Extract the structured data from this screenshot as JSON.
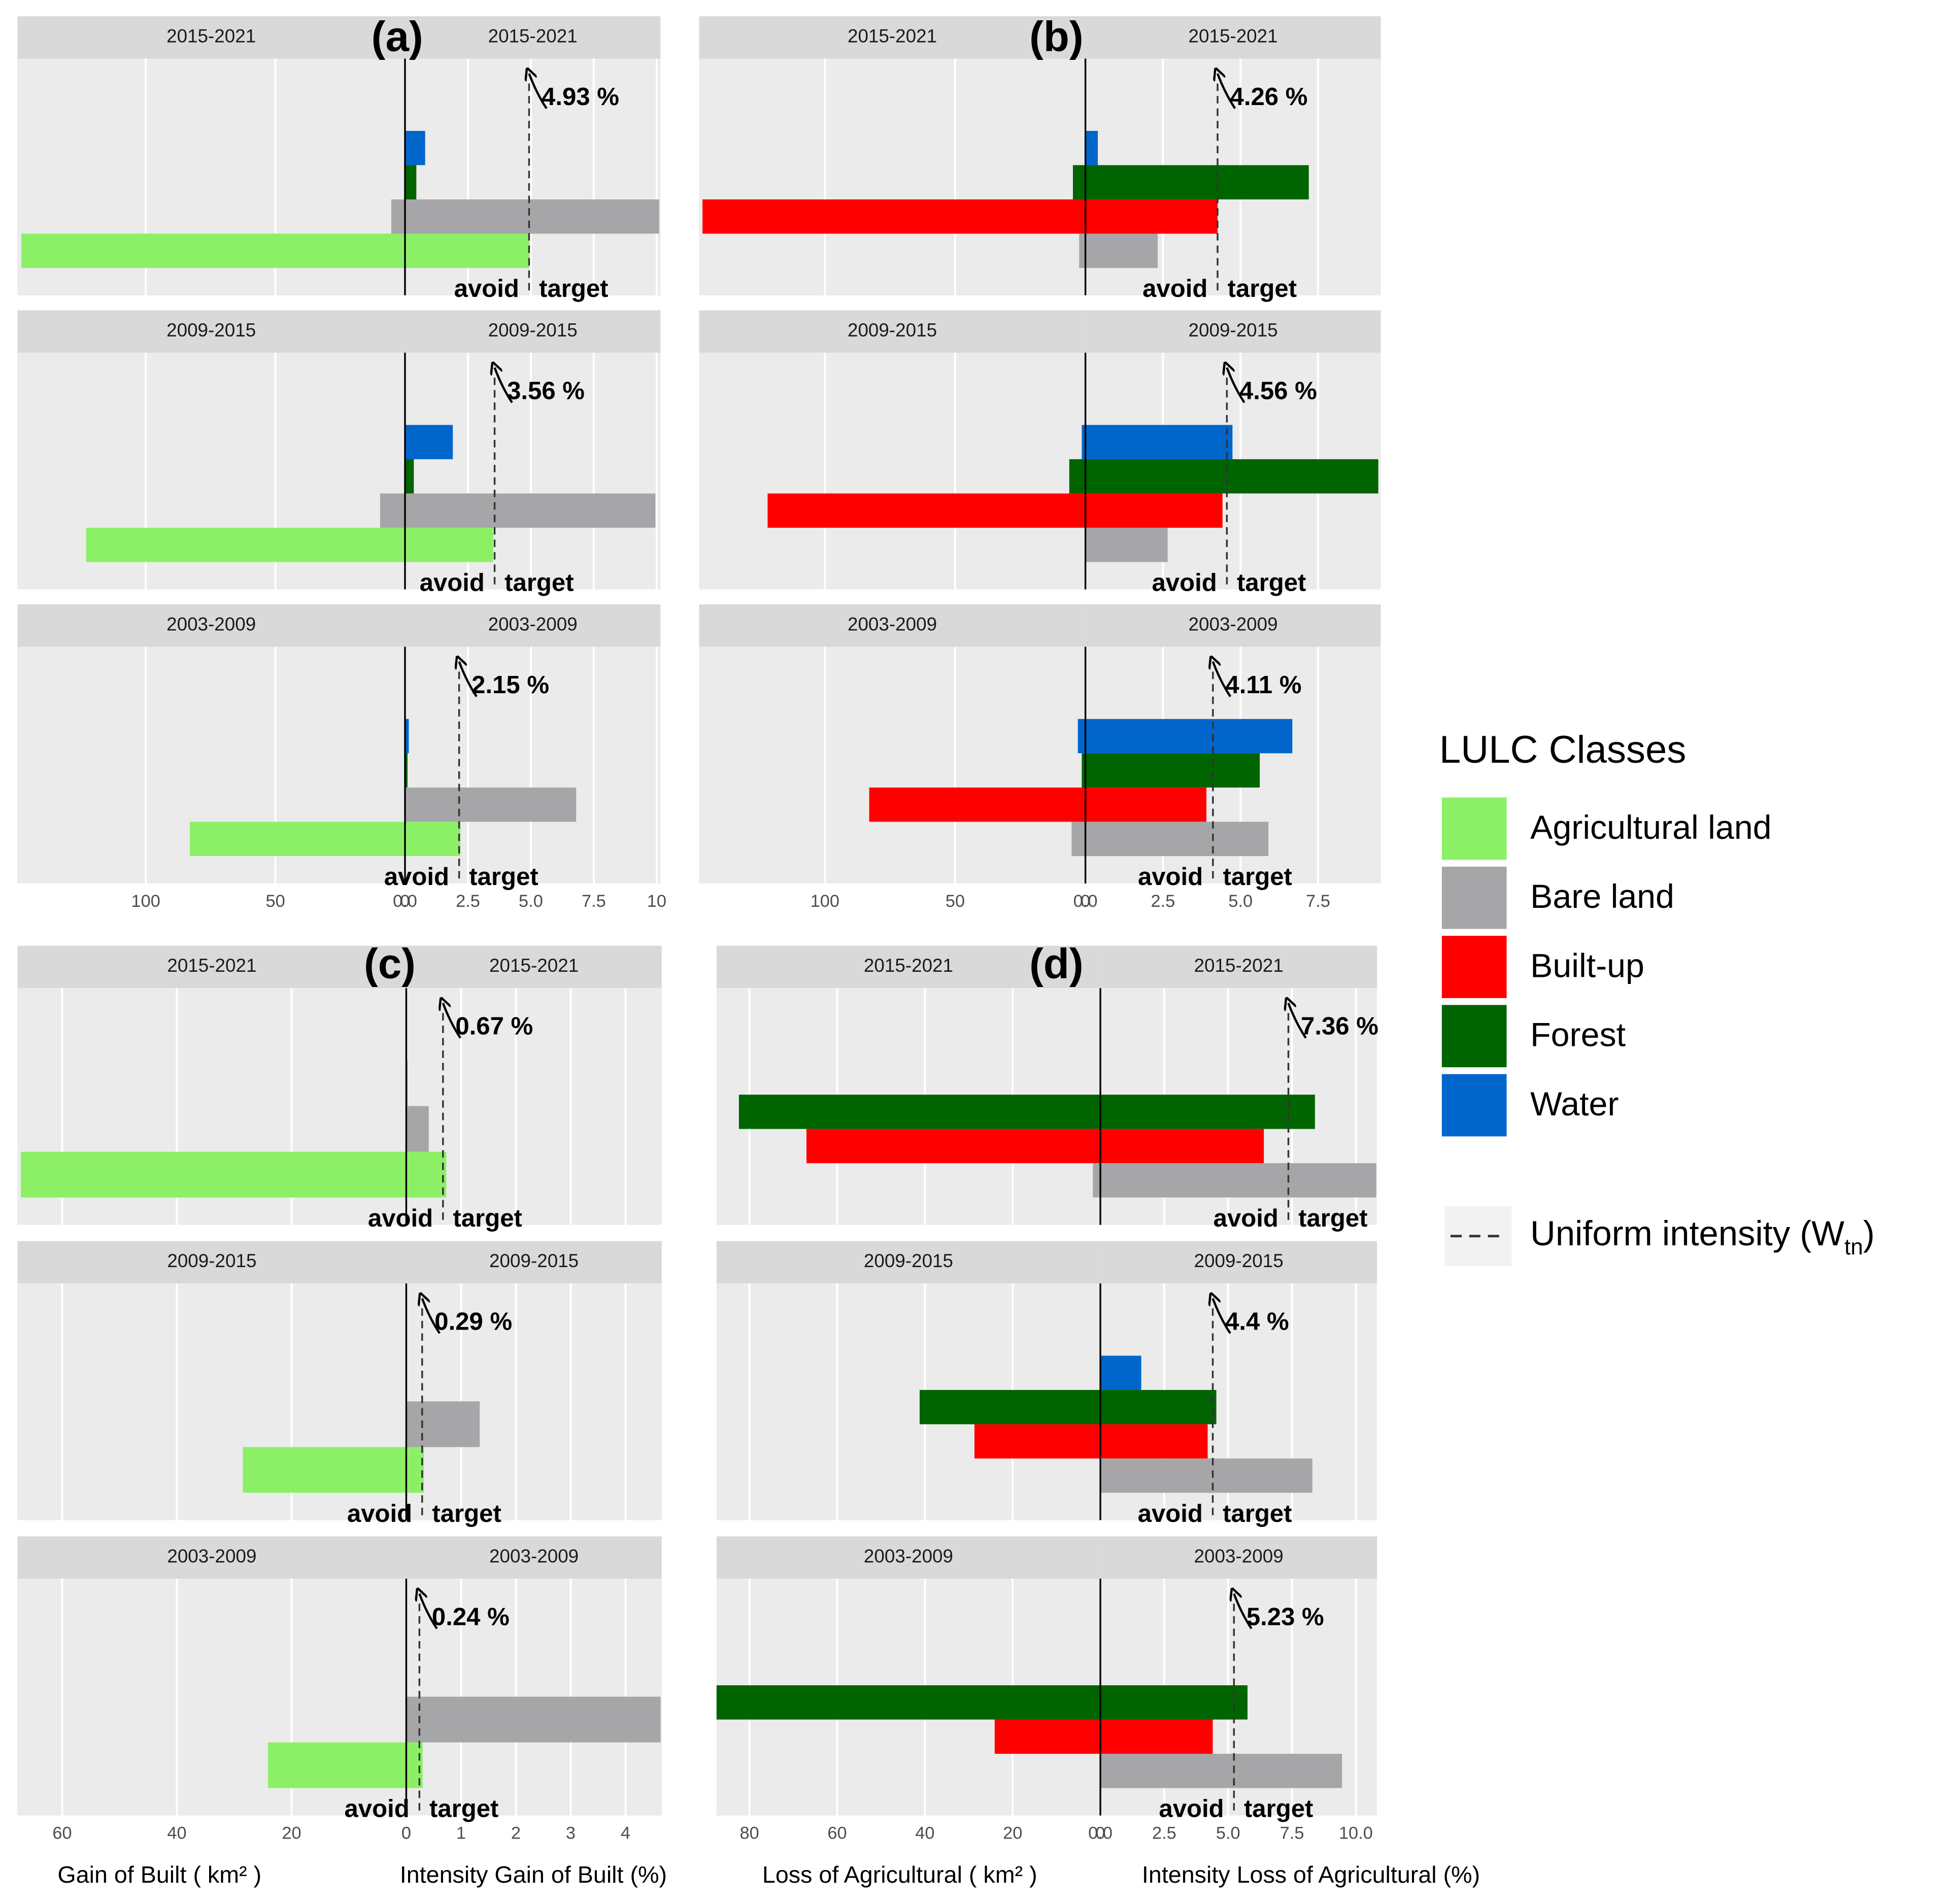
{
  "legend": {
    "title": "LULC Classes",
    "items": [
      {
        "name": "Agricultural land",
        "color": "#8cf066"
      },
      {
        "name": "Bare land",
        "color": "#a6a6a8"
      },
      {
        "name": "Built-up",
        "color": "#ff0000"
      },
      {
        "name": "Forest",
        "color": "#006400"
      },
      {
        "name": "Water",
        "color": "#0066cc"
      }
    ],
    "uniform": {
      "text": "Uniform intensity (W",
      "sub": "tn",
      "close": ")"
    }
  },
  "chart_data": [
    {
      "type": "bar",
      "panel": "(a)",
      "periods": [
        "2015-2021",
        "2009-2015",
        "2003-2009"
      ],
      "avoid": "avoid",
      "target": "target",
      "left_xlim": [
        149.5,
        0
      ],
      "left_xticks": [
        100,
        50,
        0
      ],
      "right_xlim": [
        0,
        10.15
      ],
      "right_xticks": [
        {
          "value": 0,
          "label": "0.0"
        },
        2.5,
        {
          "value": 5,
          "label": "5.0"
        },
        7.5,
        10
      ],
      "series": [
        {
          "name": "Water",
          "color": "#0066cc",
          "values": [
            0,
            0,
            0
          ],
          "values_right": [
            0.8,
            1.9,
            0.15
          ]
        },
        {
          "name": "Forest",
          "color": "#006400",
          "values": [
            0,
            0,
            0
          ],
          "values_right": [
            0.45,
            0.35,
            0.1
          ]
        },
        {
          "name": "Bare land",
          "color": "#a6a6a8",
          "values": [
            5.3,
            9.6,
            0
          ],
          "values_right": [
            10.1,
            9.95,
            6.8
          ]
        },
        {
          "name": "Agricultural land",
          "color": "#8cf066",
          "values": [
            148,
            123,
            83
          ],
          "values_right": [
            4.95,
            3.5,
            2.2
          ]
        }
      ],
      "uniform": {
        "values": [
          4.93,
          3.56,
          2.15
        ],
        "value_labels": [
          "4.93 %",
          "3.56 %",
          "2.15 %"
        ]
      }
    },
    {
      "type": "bar",
      "panel": "(b)",
      "periods": [
        "2015-2021",
        "2009-2015",
        "2003-2009"
      ],
      "avoid": "avoid",
      "target": "target",
      "left_xlim": [
        148.3,
        0
      ],
      "left_xticks": [
        100,
        50,
        0
      ],
      "right_xlim": [
        0,
        9.52
      ],
      "right_xticks": [
        {
          "value": 0,
          "label": "0.0"
        },
        2.5,
        {
          "value": 5,
          "label": "5.0"
        },
        7.5
      ],
      "series": [
        {
          "name": "Water",
          "color": "#0066cc",
          "values": [
            0,
            1.4,
            2.9
          ],
          "values_right": [
            0.4,
            4.74,
            6.67
          ]
        },
        {
          "name": "Forest",
          "color": "#006400",
          "values": [
            4.8,
            6.2,
            1.4
          ],
          "values_right": [
            7.2,
            9.44,
            5.62
          ]
        },
        {
          "name": "Built-up",
          "color": "#ff0000",
          "values": [
            147,
            122,
            83
          ],
          "values_right": [
            4.26,
            4.42,
            3.9
          ]
        },
        {
          "name": "Bare land",
          "color": "#a6a6a8",
          "values": [
            2.4,
            0,
            5.3
          ],
          "values_right": [
            2.33,
            2.65,
            5.9
          ]
        }
      ],
      "uniform": {
        "values": [
          4.26,
          4.56,
          4.11
        ],
        "value_labels": [
          "4.26 %",
          "4.56 %",
          "4.11 %"
        ]
      }
    },
    {
      "type": "bar",
      "panel": "(c)",
      "periods": [
        "2015-2021",
        "2009-2015",
        "2003-2009"
      ],
      "avoid": "avoid",
      "target": "target",
      "x_label_left": "Gain of Built ( km² )",
      "x_label_right": "Intensity Gain of Built (%)",
      "left_xlim": [
        67.8,
        0
      ],
      "left_xticks": [
        60,
        40,
        20,
        0
      ],
      "right_xlim": [
        0,
        4.66
      ],
      "right_xticks": [
        0,
        1,
        2,
        3,
        4
      ],
      "series": [
        {
          "name": "Forest",
          "color": "#006400",
          "values": [
            0,
            0,
            0
          ],
          "values_right": [
            0.02,
            0,
            0
          ]
        },
        {
          "name": "Bare land",
          "color": "#a6a6a8",
          "values": [
            0,
            0,
            0
          ],
          "values_right": [
            0.41,
            1.34,
            4.64
          ]
        },
        {
          "name": "Agricultural land",
          "color": "#8cf066",
          "values": [
            67.2,
            28.5,
            24.1
          ],
          "values_right": [
            0.73,
            0.32,
            0.3
          ]
        }
      ],
      "uniform": {
        "values": [
          0.67,
          0.29,
          0.24
        ],
        "value_labels": [
          "0.67 %",
          "0.29 %",
          "0.24 %"
        ]
      }
    },
    {
      "type": "bar",
      "panel": "(d)",
      "periods": [
        "2015-2021",
        "2009-2015",
        "2003-2009"
      ],
      "avoid": "avoid",
      "target": "target",
      "x_label_left": "Loss of Agricultural ( km² )",
      "x_label_right": "Intensity Loss of Agricultural (%)",
      "left_xlim": [
        87.5,
        0
      ],
      "left_xticks": [
        80,
        60,
        40,
        20,
        0
      ],
      "right_xlim": [
        0,
        10.83
      ],
      "right_xticks": [
        {
          "value": 0,
          "label": "0.0"
        },
        2.5,
        {
          "value": 5,
          "label": "5.0"
        },
        7.5,
        {
          "value": 10,
          "label": "10.0"
        }
      ],
      "series": [
        {
          "name": "Water",
          "color": "#0066cc",
          "values": [
            0,
            0,
            0
          ],
          "values_right": [
            0,
            1.6,
            0
          ]
        },
        {
          "name": "Forest",
          "color": "#006400",
          "values": [
            82.4,
            41.2,
            87.5
          ],
          "values_right": [
            8.4,
            4.54,
            5.76
          ]
        },
        {
          "name": "Built-up",
          "color": "#ff0000",
          "values": [
            67,
            28.7,
            24.1
          ],
          "values_right": [
            6.4,
            4.2,
            4.4
          ]
        },
        {
          "name": "Bare land",
          "color": "#a6a6a8",
          "values": [
            1.7,
            0,
            0
          ],
          "values_right": [
            10.8,
            8.3,
            9.46
          ]
        }
      ],
      "uniform": {
        "values": [
          7.36,
          4.4,
          5.23
        ],
        "value_labels": [
          "7.36 %",
          "4.4 %",
          "5.23 %"
        ]
      }
    }
  ]
}
